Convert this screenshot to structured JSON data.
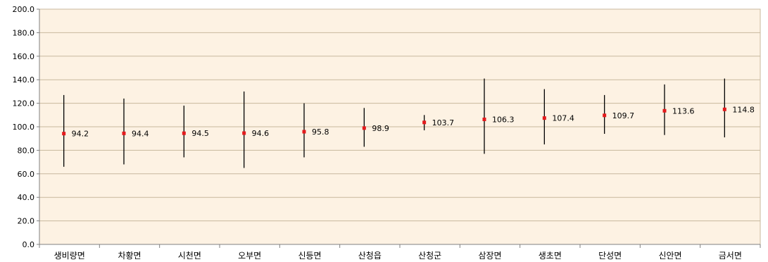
{
  "chart_data": {
    "type": "scatter",
    "categories": [
      "생비량면",
      "차황면",
      "시천면",
      "오부면",
      "신등면",
      "산청읍",
      "산청군",
      "삼장면",
      "생초면",
      "단성면",
      "신안면",
      "금서면"
    ],
    "values": [
      94.2,
      94.4,
      94.5,
      94.6,
      95.8,
      98.9,
      103.7,
      106.3,
      107.4,
      109.7,
      113.6,
      114.8
    ],
    "labels": [
      "94.2",
      "94.4",
      "94.5",
      "94.6",
      "95.8",
      "98.9",
      "103.7",
      "106.3",
      "107.4",
      "109.7",
      "113.6",
      "114.8"
    ],
    "low": [
      66,
      68,
      74,
      65,
      74,
      83,
      97,
      77,
      85,
      94,
      93,
      91
    ],
    "high": [
      127,
      124,
      118,
      130,
      120,
      116,
      110,
      141,
      132,
      127,
      136,
      141
    ],
    "ylim": [
      0,
      200
    ],
    "yticks": [
      "0.0",
      "20.0",
      "40.0",
      "60.0",
      "80.0",
      "100.0",
      "120.0",
      "140.0",
      "160.0",
      "180.0",
      "200.0"
    ],
    "grid": true,
    "colors": {
      "plot_background": "#fdf2e3",
      "gridline": "#c8b89e",
      "marker": "#e41a1c",
      "whisker": "#000000"
    }
  }
}
